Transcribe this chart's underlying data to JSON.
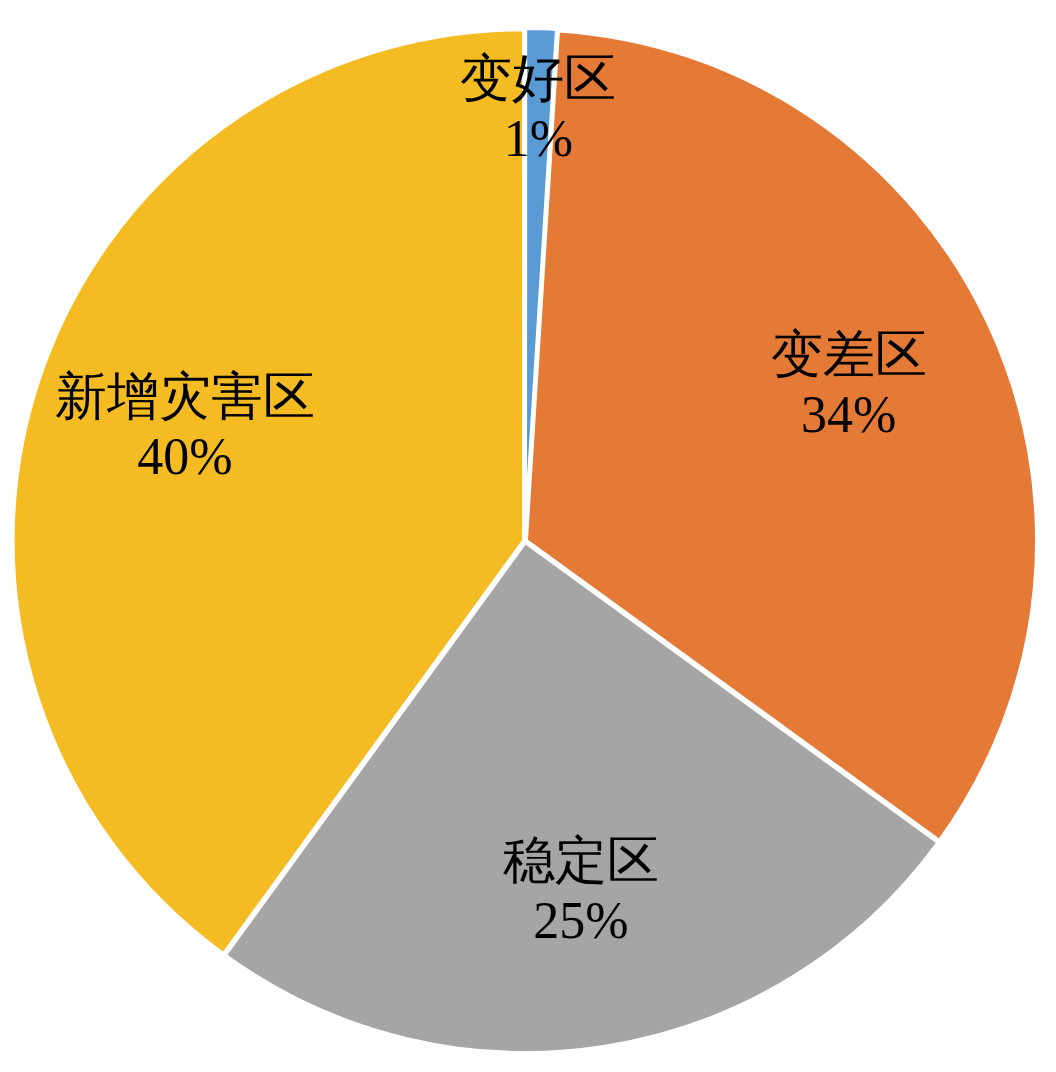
{
  "chart_data": {
    "type": "pie",
    "categories": [
      "变好区",
      "变差区",
      "稳定区",
      "新增灾害区"
    ],
    "values": [
      1,
      34,
      25,
      40
    ],
    "value_labels": [
      "1%",
      "34%",
      "25%",
      "40%"
    ],
    "colors": [
      "#5b9bd5",
      "#e57a37",
      "#a5a5a5",
      "#f5bb22"
    ]
  }
}
